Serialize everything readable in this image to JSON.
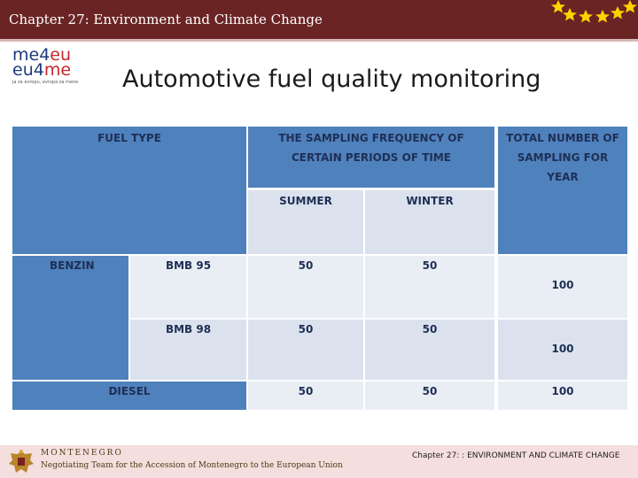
{
  "header": {
    "title": "Chapter 27: Environment and Climate Change"
  },
  "logo": {
    "line1_a": "me4",
    "line1_b": "eu",
    "line2_a": "eu4",
    "line2_b": "me",
    "tagline": "ja za evropu, evropa za mene"
  },
  "slide": {
    "title": "Automotive fuel quality monitoring"
  },
  "table": {
    "headers": {
      "fuel_type": "FUEL TYPE",
      "frequency": "THE SAMPLING FREQUENCY OF CERTAIN PERIODS OF TIME",
      "total": "TOTAL NUMBER OF SAMPLING FOR YEAR",
      "summer": "SUMMER",
      "winter": "WINTER"
    },
    "rows": [
      {
        "fuel": "BENZIN",
        "grade": "BMB 95",
        "summer": "50",
        "winter": "50",
        "total": "100"
      },
      {
        "fuel": "",
        "grade": "BMB 98",
        "summer": "50",
        "winter": "50",
        "total": "100"
      },
      {
        "fuel": "DIESEL",
        "grade": "",
        "summer": "50",
        "winter": "50",
        "total": "100"
      }
    ]
  },
  "footer": {
    "country": "MONTENEGRO",
    "team": "Negotiating Team for the Accession of Montenegro to the European Union",
    "chapter": "Chapter 27: : ENVIRONMENT AND CLIMATE CHANGE"
  },
  "colors": {
    "header_bg": "#6b2424",
    "table_header_blue": "#4f81bd",
    "table_cell_light": "#dbe2ee",
    "star_yellow": "#ffd200"
  }
}
